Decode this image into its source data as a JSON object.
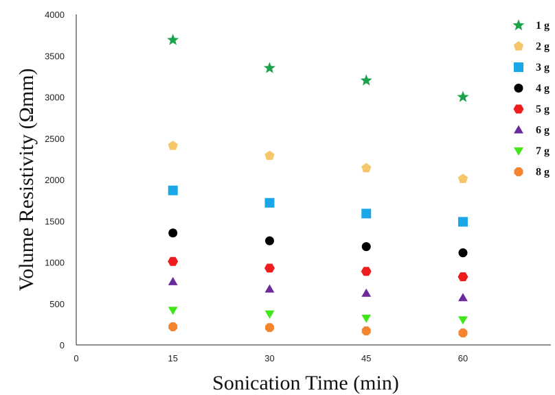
{
  "chart_data": {
    "type": "scatter",
    "title": "",
    "xlabel": "Sonication Time (min)",
    "ylabel": "Volume Resistivity (Ωmm)",
    "x_ticks": [
      0,
      15,
      30,
      45,
      60
    ],
    "y_ticks": [
      0,
      500,
      1000,
      1500,
      2000,
      2500,
      3000,
      3500,
      4000
    ],
    "xlim": [
      0,
      75
    ],
    "ylim": [
      0,
      4000
    ],
    "grid": false,
    "legend_position": "right",
    "x": [
      15,
      30,
      45,
      60
    ],
    "series": [
      {
        "name": "1 g",
        "marker": "star",
        "color": "#1aa34a",
        "values": [
          3690,
          3350,
          3200,
          3000
        ]
      },
      {
        "name": "2 g",
        "marker": "pentagon",
        "color": "#f6c66a",
        "values": [
          2410,
          2290,
          2140,
          2010
        ]
      },
      {
        "name": "3 g",
        "marker": "square",
        "color": "#1aa7e8",
        "values": [
          1870,
          1720,
          1590,
          1490
        ]
      },
      {
        "name": "4 g",
        "marker": "circle",
        "color": "#000000",
        "values": [
          1355,
          1260,
          1190,
          1115
        ]
      },
      {
        "name": "5 g",
        "marker": "hexagon",
        "color": "#ee1c1c",
        "values": [
          1010,
          930,
          890,
          825
        ]
      },
      {
        "name": "6 g",
        "marker": "triangle-up",
        "color": "#6a2a9c",
        "values": [
          765,
          675,
          625,
          570
        ]
      },
      {
        "name": "7 g",
        "marker": "triangle-down",
        "color": "#3ee61a",
        "values": [
          420,
          375,
          325,
          305
        ]
      },
      {
        "name": "8 g",
        "marker": "octagon",
        "color": "#f5842e",
        "values": [
          220,
          210,
          170,
          145
        ]
      }
    ]
  }
}
